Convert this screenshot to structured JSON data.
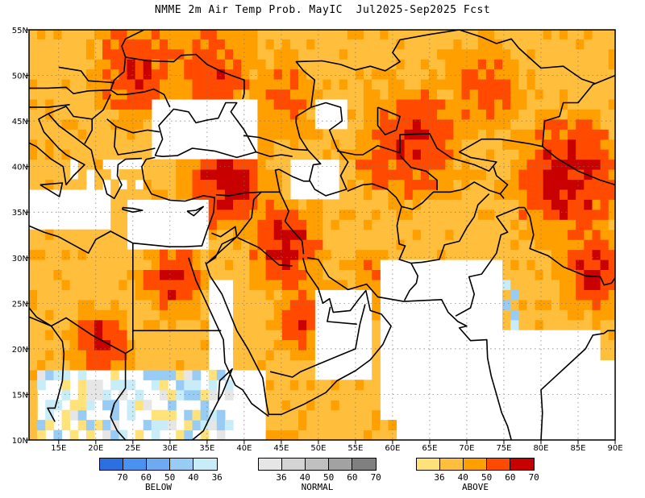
{
  "title": "NMME 2m Air Temp Prob. MayIC  Jul2025-Sep2025 Fcst",
  "x_ticks": [
    "15E",
    "20E",
    "25E",
    "30E",
    "35E",
    "40E",
    "45E",
    "50E",
    "55E",
    "60E",
    "65E",
    "70E",
    "75E",
    "80E",
    "85E",
    "90E"
  ],
  "y_ticks": [
    "55N",
    "50N",
    "45N",
    "40N",
    "35N",
    "30N",
    "25N",
    "20N",
    "15N",
    "10N"
  ],
  "lon_range": [
    11,
    90
  ],
  "lat_range": [
    10,
    55
  ],
  "colors": {
    "below": [
      "#2b6fe0",
      "#4a92f0",
      "#6eaaf2",
      "#98ccf4",
      "#c8ecf8"
    ],
    "normal": [
      "#e6e6e6",
      "#d4d4d4",
      "#c0c0c0",
      "#a2a2a2",
      "#808080"
    ],
    "above": [
      "#ffe37a",
      "#ffbf3c",
      "#ff9f00",
      "#ff4a00",
      "#c80000"
    ]
  },
  "legend": {
    "below": {
      "name": "BELOW",
      "ticks": [
        "70",
        "60",
        "50",
        "40",
        "36"
      ]
    },
    "normal": {
      "name": "NORMAL",
      "ticks": [
        "36",
        "40",
        "50",
        "60",
        "70"
      ]
    },
    "above": {
      "name": "ABOVE",
      "ticks": [
        "36",
        "40",
        "50",
        "60",
        "70"
      ]
    }
  }
}
